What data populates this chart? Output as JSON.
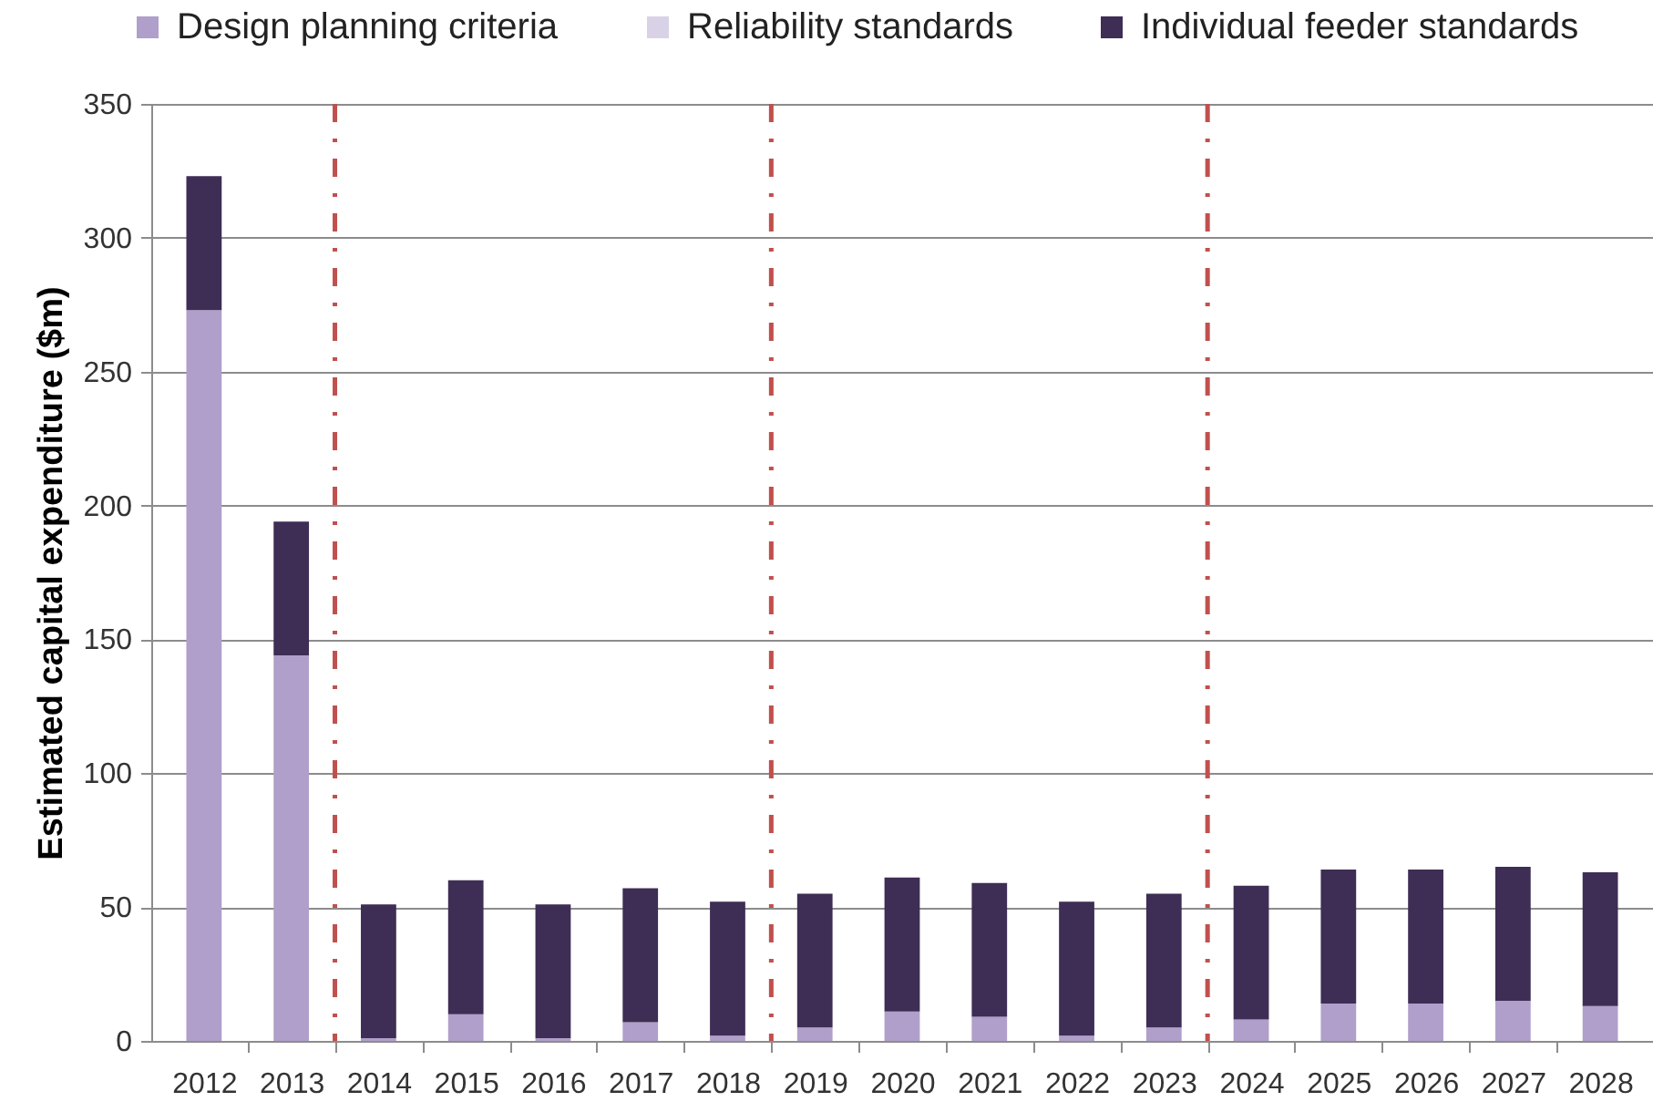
{
  "chart_data": {
    "type": "bar",
    "stacked": true,
    "ylabel": "Estimated capital expenditure ($m)",
    "x": [
      2012,
      2013,
      2014,
      2015,
      2016,
      2017,
      2018,
      2019,
      2020,
      2021,
      2022,
      2023,
      2024,
      2025,
      2026,
      2027,
      2028
    ],
    "xlim": [
      2011.5,
      2028.5
    ],
    "xticks": [
      2012,
      2013,
      2014,
      2015,
      2016,
      2017,
      2018,
      2019,
      2020,
      2021,
      2022,
      2023,
      2024,
      2025,
      2026,
      2027,
      2028,
      {
        "value": 2012.5,
        "label": null
      },
      {
        "value": 2013.5,
        "label": null
      },
      {
        "value": 2014.5,
        "label": null
      },
      {
        "value": 2015.5,
        "label": null
      },
      {
        "value": 2016.5,
        "label": null
      },
      {
        "value": 2017.5,
        "label": null
      },
      {
        "value": 2018.5,
        "label": null
      },
      {
        "value": 2019.5,
        "label": null
      },
      {
        "value": 2020.5,
        "label": null
      },
      {
        "value": 2021.5,
        "label": null
      },
      {
        "value": 2022.5,
        "label": null
      },
      {
        "value": 2023.5,
        "label": null
      },
      {
        "value": 2024.5,
        "label": null
      },
      {
        "value": 2025.5,
        "label": null
      },
      {
        "value": 2026.5,
        "label": null
      },
      {
        "value": 2027.5,
        "label": null
      }
    ],
    "ylim": [
      0,
      350
    ],
    "yticks": [
      0,
      50,
      100,
      150,
      200,
      250,
      300,
      350
    ],
    "grid": "y",
    "legend": "top",
    "series": [
      {
        "name": "Design planning criteria",
        "color": "#b09fca",
        "values": [
          273,
          144,
          1,
          10,
          1,
          7,
          2,
          5,
          11,
          9,
          2,
          5,
          8,
          14,
          14,
          15,
          13
        ]
      },
      {
        "name": "Reliability standards",
        "color": "#d9d2e7",
        "values": [
          null,
          null,
          null,
          null,
          null,
          null,
          null,
          null,
          null,
          null,
          null,
          null,
          null,
          null,
          null,
          null,
          null
        ]
      },
      {
        "name": "Individual feeder standards",
        "color": "#3e2d54",
        "values": [
          50,
          50,
          50,
          50,
          50,
          50,
          50,
          50,
          50,
          50,
          50,
          50,
          50,
          50,
          50,
          50,
          50
        ]
      }
    ],
    "ref_lines": [
      {
        "axis": "x",
        "value": 2013.5,
        "color": "#c0504d",
        "line_style": "dashed"
      },
      {
        "axis": "x",
        "value": 2018.5,
        "color": "#c0504d",
        "line_style": "dashed"
      },
      {
        "axis": "x",
        "value": 2023.5,
        "color": "#c0504d",
        "line_style": "dashed"
      }
    ]
  }
}
